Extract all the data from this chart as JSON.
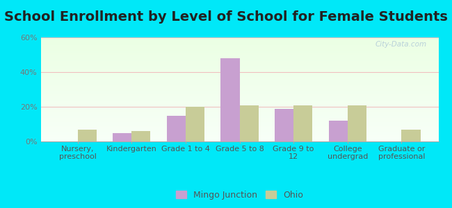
{
  "title": "School Enrollment by Level of School for Female Students",
  "categories": [
    "Nursery,\npreschool",
    "Kindergarten",
    "Grade 1 to 4",
    "Grade 5 to 8",
    "Grade 9 to\n12",
    "College\nundergrad",
    "Graduate or\nprofessional"
  ],
  "mingo_values": [
    0,
    5,
    15,
    48,
    19,
    12,
    0
  ],
  "ohio_values": [
    7,
    6,
    20,
    21,
    21,
    21,
    7
  ],
  "mingo_color": "#c8a0d0",
  "ohio_color": "#c8cc98",
  "bar_width": 0.35,
  "ylim": [
    0,
    60
  ],
  "yticks": [
    0,
    20,
    40,
    60
  ],
  "ytick_labels": [
    "0%",
    "20%",
    "40%",
    "60%"
  ],
  "background_color": "#00e8f8",
  "title_fontsize": 14,
  "tick_fontsize": 8,
  "legend_fontsize": 9,
  "watermark": "City-Data.com"
}
